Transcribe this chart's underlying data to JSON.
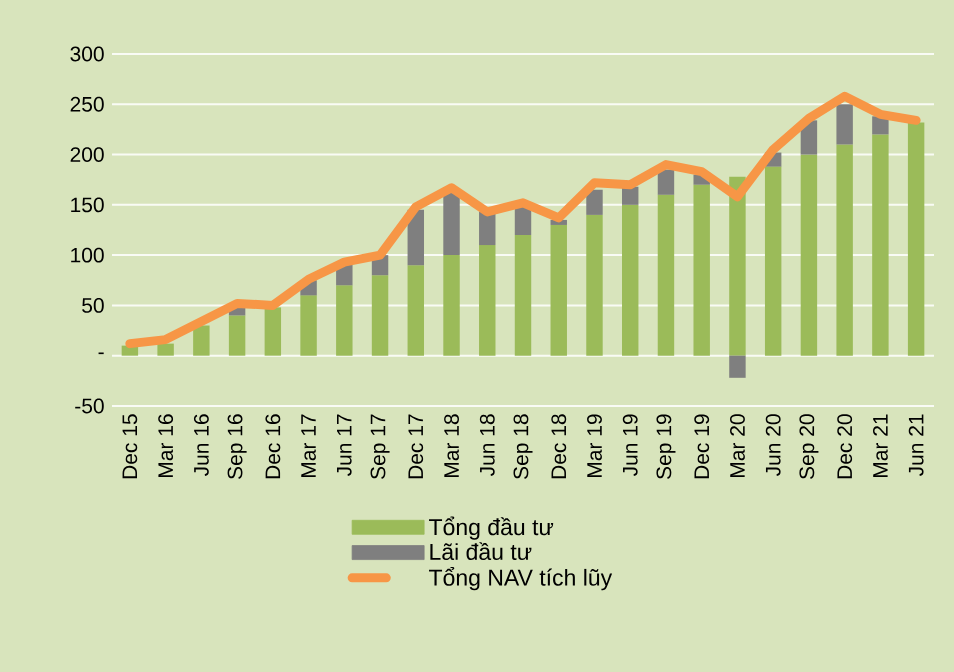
{
  "chart_data": {
    "type": "bar",
    "stacked": true,
    "categories": [
      "Dec 15",
      "Mar 16",
      "Jun 16",
      "Sep 16",
      "Dec 16",
      "Mar 17",
      "Jun 17",
      "Sep 17",
      "Dec 17",
      "Mar 18",
      "Jun 18",
      "Sep 18",
      "Dec 18",
      "Mar 19",
      "Jun 19",
      "Sep 19",
      "Dec 19",
      "Mar 20",
      "Jun 20",
      "Sep 20",
      "Dec 20",
      "Mar 21",
      "Jun 21"
    ],
    "series": [
      {
        "name": "Tổng đầu tư",
        "color": "#9bbb59",
        "values": [
          10,
          12,
          30,
          40,
          48,
          60,
          70,
          80,
          90,
          100,
          110,
          120,
          130,
          140,
          150,
          160,
          170,
          178,
          188,
          200,
          210,
          220,
          232
        ]
      },
      {
        "name": "Lãi đầu tư",
        "color": "#7f7f7f",
        "values": [
          null,
          null,
          null,
          10,
          null,
          15,
          22,
          20,
          55,
          62,
          33,
          30,
          5,
          25,
          18,
          25,
          10,
          -22,
          14,
          34,
          40,
          18,
          null
        ]
      },
      {
        "name": "Tổng NAV tích lũy",
        "type": "line",
        "color": "#f79646",
        "values": [
          12,
          16,
          34,
          52,
          50,
          76,
          93,
          100,
          148,
          167,
          143,
          152,
          137,
          172,
          170,
          190,
          183,
          158,
          205,
          236,
          258,
          240,
          234
        ]
      }
    ],
    "ylim": [
      -50,
      300
    ],
    "yticks": [
      -50,
      {
        "value": 0,
        "label": "-"
      },
      50,
      100,
      150,
      200,
      250,
      300
    ],
    "grid": "y",
    "legend": "bottom"
  }
}
